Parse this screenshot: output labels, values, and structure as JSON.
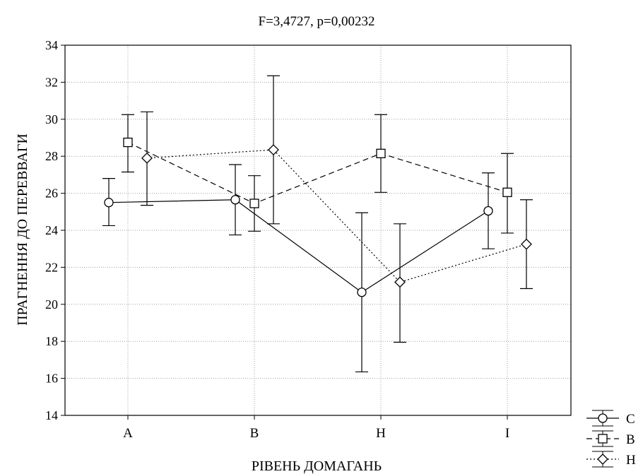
{
  "chart_data": {
    "type": "line",
    "title": "F=3,4727, p=0,00232",
    "xlabel": "РІВЕНЬ ДОМАГАНЬ",
    "ylabel": "ПРАГНЕННЯ ДО ПЕРЕВВАГИ",
    "categories": [
      "A",
      "B",
      "H",
      "I"
    ],
    "ylim": [
      14,
      34
    ],
    "yticks": [
      14,
      16,
      18,
      20,
      22,
      24,
      26,
      28,
      30,
      32,
      34
    ],
    "grid": true,
    "legend_position": "bottom-right",
    "series": [
      {
        "name": "C",
        "marker": "circle",
        "line_style": "solid",
        "values": [
          25.5,
          25.65,
          20.65,
          25.05
        ],
        "lower": [
          24.25,
          23.75,
          16.35,
          23.0
        ],
        "upper": [
          26.8,
          27.55,
          24.95,
          27.1
        ]
      },
      {
        "name": "B",
        "marker": "square",
        "line_style": "dashed",
        "values": [
          28.75,
          25.45,
          28.15,
          26.05
        ],
        "lower": [
          27.15,
          23.95,
          26.05,
          23.85
        ],
        "upper": [
          30.25,
          26.95,
          30.25,
          28.15
        ]
      },
      {
        "name": "H",
        "marker": "diamond",
        "line_style": "dotted",
        "values": [
          27.9,
          28.35,
          21.2,
          23.25
        ],
        "lower": [
          25.35,
          24.35,
          17.95,
          20.85
        ],
        "upper": [
          30.4,
          32.35,
          24.35,
          25.65
        ]
      }
    ]
  }
}
